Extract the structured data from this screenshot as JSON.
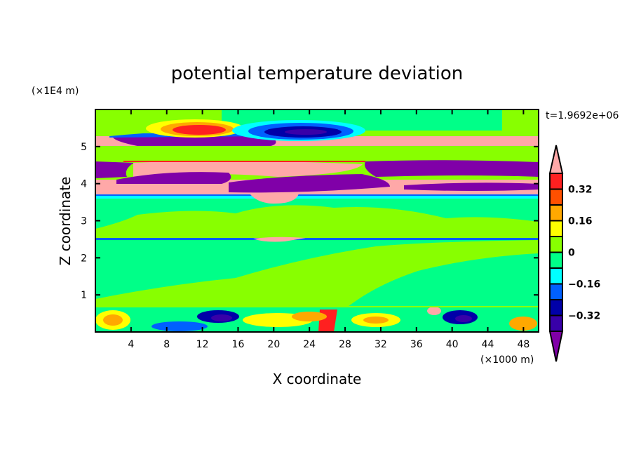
{
  "chart_data": {
    "type": "heatmap",
    "title": "potential temperature deviation",
    "xlabel": "X coordinate",
    "ylabel": "Z coordinate",
    "x_unit_label": "(×1000 m)",
    "y_unit_label": "(×1E4 m)",
    "time_label": "t=1.9692e+06",
    "xlim": [
      0,
      49.7
    ],
    "ylim": [
      0,
      6
    ],
    "x_ticks": [
      4,
      8,
      12,
      16,
      20,
      24,
      28,
      32,
      36,
      40,
      44,
      48
    ],
    "x_tick_labels": [
      "4",
      "8",
      "12",
      "16",
      "20",
      "24",
      "28",
      "32",
      "36",
      "40",
      "44",
      "48"
    ],
    "y_ticks": [
      1,
      2,
      3,
      4,
      5
    ],
    "y_tick_labels": [
      "1",
      "2",
      "3",
      "4",
      "5"
    ],
    "colorbar": {
      "levels": [
        -0.4,
        -0.32,
        -0.24,
        -0.16,
        -0.08,
        0,
        0.08,
        0.16,
        0.24,
        0.32,
        0.4
      ],
      "labels": [
        {
          "value": 0.32,
          "text": "0.32"
        },
        {
          "value": 0.16,
          "text": "0.16"
        },
        {
          "value": 0,
          "text": "0"
        },
        {
          "value": -0.16,
          "text": "−0.16"
        },
        {
          "value": -0.32,
          "text": "−0.32"
        }
      ],
      "colors": [
        "#3800a8",
        "#0000a8",
        "#0060ff",
        "#00ffff",
        "#00ff88",
        "#88ff00",
        "#ffff00",
        "#ffa800",
        "#ff5000",
        "#ff2020"
      ],
      "under_color": "#8000a8",
      "over_color": "#ffa8a8"
    }
  }
}
